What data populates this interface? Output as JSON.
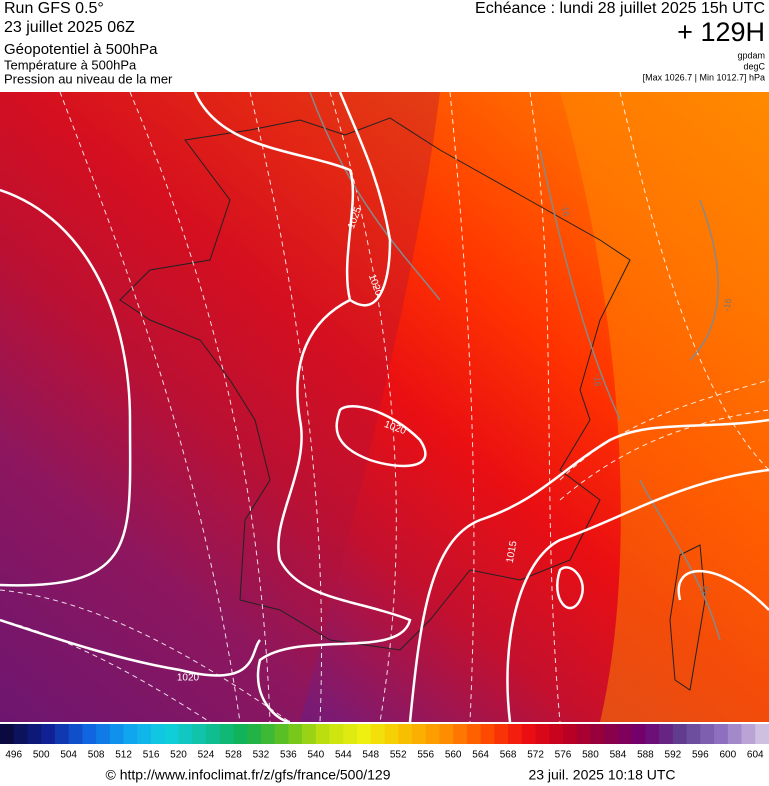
{
  "header": {
    "run": "Run GFS 0.5°",
    "date": "23 juillet 2025 06Z",
    "field": "Géopotentiel à 500hPa",
    "line2": "Température à 500hPa",
    "line3": "Pression au niveau de la mer",
    "echeance": "Echéance : lundi 28 juillet 2025 15h UTC",
    "lead": "+ 129H",
    "units": [
      "gpdam",
      "degC",
      "[Max 1026.7 | Min 1012.7] hPa"
    ]
  },
  "map": {
    "isobar_labels": [
      "1025",
      "1020",
      "1020",
      "1015",
      "1020"
    ],
    "isotherm_labels": [
      "-16",
      "-16",
      "-16",
      "-16"
    ]
  },
  "legend": {
    "values": [
      496,
      500,
      504,
      508,
      512,
      516,
      520,
      524,
      528,
      532,
      536,
      540,
      544,
      548,
      552,
      556,
      560,
      564,
      568,
      572,
      576,
      580,
      584,
      588,
      592,
      596,
      600,
      604
    ]
  },
  "footer": {
    "url": "© http://www.infoclimat.fr/z/gfs/france/500/129",
    "timestamp": "23 juil. 2025 10:18 UTC"
  }
}
